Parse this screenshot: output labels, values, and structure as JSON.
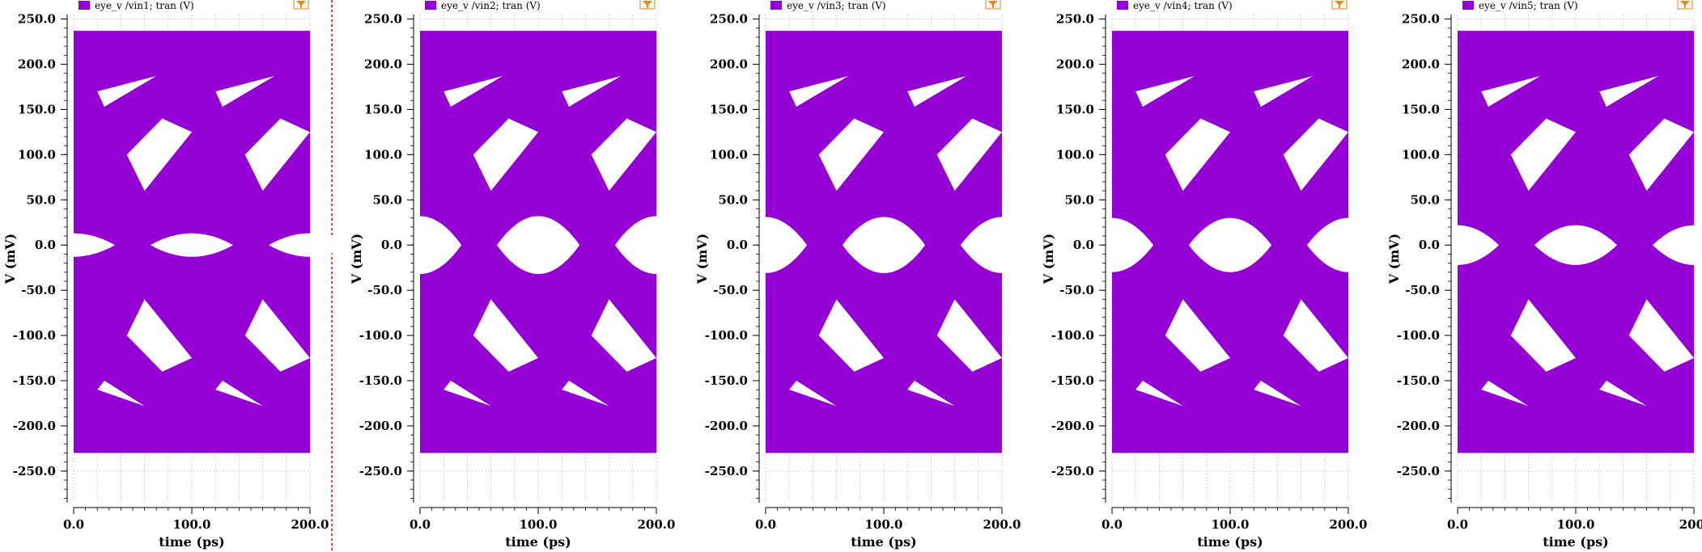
{
  "chart_data": [
    {
      "type": "eye-diagram",
      "legend": "eye_v /vin1; tran (V)",
      "xlabel": "time (ps)",
      "ylabel": "V (mV)",
      "xlim": [
        0,
        200
      ],
      "ylim": [
        -285,
        255
      ],
      "xticks": [
        "0.0",
        "100.0",
        "200.0"
      ],
      "yticks": [
        250,
        200,
        150,
        100,
        50,
        0,
        -50,
        -100,
        -150,
        -200,
        -250
      ],
      "ytick_labels": [
        "250.0",
        "200.0",
        "150.0",
        "100.0",
        "50.0",
        "0.0",
        "-50.0",
        "-100.0",
        "-150.0",
        "-200.0",
        "-250.0"
      ],
      "fill_range_y": [
        -230,
        237
      ],
      "fill_range_x": [
        0,
        200
      ],
      "eye_opening_height_mv": 26,
      "color": "#9400d3"
    },
    {
      "type": "eye-diagram",
      "legend": "eye_v /vin2; tran (V)",
      "xlabel": "time (ps)",
      "ylabel": "V (mV)",
      "xlim": [
        0,
        200
      ],
      "ylim": [
        -285,
        255
      ],
      "xticks": [
        "0.0",
        "100.0",
        "200.0"
      ],
      "yticks": [
        250,
        200,
        150,
        100,
        50,
        0,
        -50,
        -100,
        -150,
        -200,
        -250
      ],
      "ytick_labels": [
        "250.0",
        "200.0",
        "150.0",
        "100.0",
        "50.0",
        "0.0",
        "-50.0",
        "-100.0",
        "-150.0",
        "-200.0",
        "-250.0"
      ],
      "fill_range_y": [
        -230,
        237
      ],
      "fill_range_x": [
        0,
        200
      ],
      "eye_opening_height_mv": 64,
      "color": "#9400d3"
    },
    {
      "type": "eye-diagram",
      "legend": "eye_v /vin3; tran (V)",
      "xlabel": "time (ps)",
      "ylabel": "V (mV)",
      "xlim": [
        0,
        200
      ],
      "ylim": [
        -285,
        255
      ],
      "xticks": [
        "0.0",
        "100.0",
        "200.0"
      ],
      "yticks": [
        250,
        200,
        150,
        100,
        50,
        0,
        -50,
        -100,
        -150,
        -200,
        -250
      ],
      "ytick_labels": [
        "250.0",
        "200.0",
        "150.0",
        "100.0",
        "50.0",
        "0.0",
        "-50.0",
        "-100.0",
        "-150.0",
        "-200.0",
        "-250.0"
      ],
      "fill_range_y": [
        -230,
        237
      ],
      "fill_range_x": [
        0,
        200
      ],
      "eye_opening_height_mv": 62,
      "color": "#9400d3"
    },
    {
      "type": "eye-diagram",
      "legend": "eye_v /vin4; tran (V)",
      "xlabel": "time (ps)",
      "ylabel": "V (mV)",
      "xlim": [
        0,
        200
      ],
      "ylim": [
        -285,
        255
      ],
      "xticks": [
        "0.0",
        "100.0",
        "200.0"
      ],
      "yticks": [
        250,
        200,
        150,
        100,
        50,
        0,
        -50,
        -100,
        -150,
        -200,
        -250
      ],
      "ytick_labels": [
        "250.0",
        "200.0",
        "150.0",
        "100.0",
        "50.0",
        "0.0",
        "-50.0",
        "-100.0",
        "-150.0",
        "-200.0",
        "-250.0"
      ],
      "fill_range_y": [
        -230,
        237
      ],
      "fill_range_x": [
        0,
        200
      ],
      "eye_opening_height_mv": 60,
      "color": "#9400d3"
    },
    {
      "type": "eye-diagram",
      "legend": "eye_v /vin5; tran (V)",
      "xlabel": "time (ps)",
      "ylabel": "V (mV)",
      "xlim": [
        0,
        200
      ],
      "ylim": [
        -285,
        255
      ],
      "xticks": [
        "0.0",
        "100.0",
        "200."
      ],
      "yticks": [
        250,
        200,
        150,
        100,
        50,
        0,
        -50,
        -100,
        -150,
        -200,
        -250
      ],
      "ytick_labels": [
        "250.0",
        "200.0",
        "150.0",
        "100.0",
        "50.0",
        "0.0",
        "-50.0",
        "-100.0",
        "-150.0",
        "-200.0",
        "-250.0"
      ],
      "fill_range_y": [
        -230,
        237
      ],
      "fill_range_x": [
        0,
        200
      ],
      "eye_opening_height_mv": 44,
      "color": "#9400d3"
    }
  ]
}
